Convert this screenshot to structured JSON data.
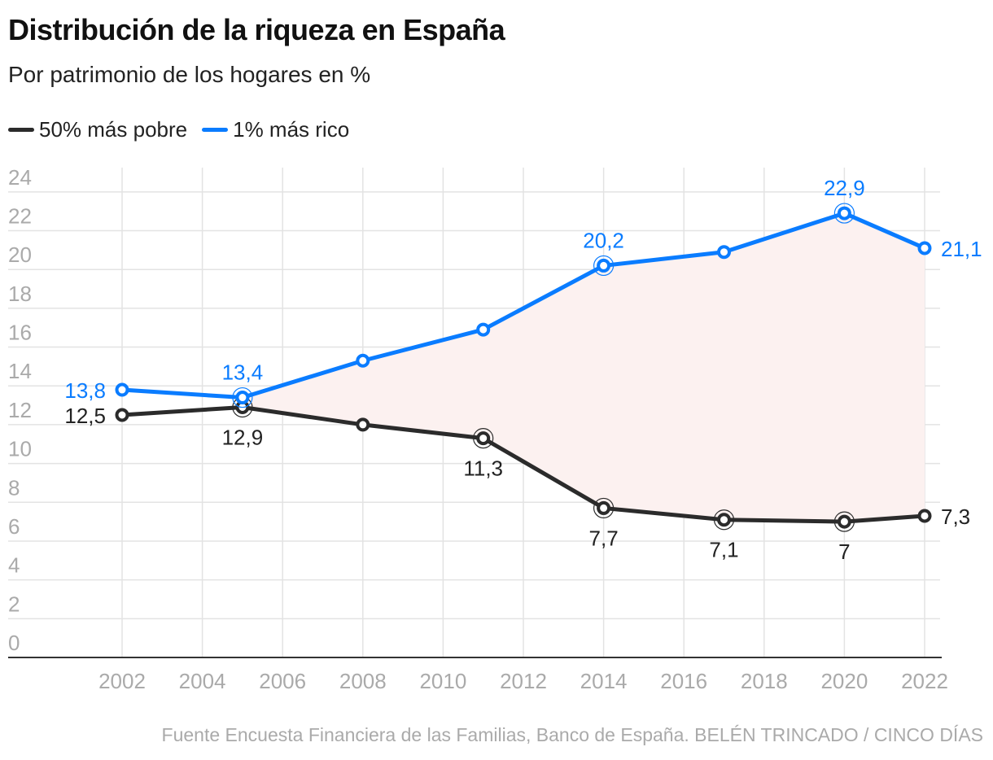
{
  "title": "Distribución de la riqueza en España",
  "subtitle": "Por patrimonio de los hogares en %",
  "source": "Fuente Encuesta Financiera de las Familias, Banco de España. BELÉN TRINCADO / CINCO DÍAS",
  "chart_data": {
    "type": "line",
    "title": "Distribución de la riqueza en España",
    "subtitle": "Por patrimonio de los hogares en %",
    "x": [
      2002,
      2005,
      2008,
      2011,
      2014,
      2017,
      2020,
      2022
    ],
    "xticks": [
      "2002",
      "2004",
      "2006",
      "2008",
      "2010",
      "2012",
      "2014",
      "2016",
      "2018",
      "2020",
      "2022"
    ],
    "yticks": [
      "0",
      "2",
      "4",
      "6",
      "8",
      "10",
      "12",
      "14",
      "16",
      "18",
      "20",
      "22",
      "24"
    ],
    "ylim": [
      0,
      24
    ],
    "grid": true,
    "legend_position": "top-left",
    "series": [
      {
        "name": "50% más pobre",
        "color": "#2b2b2b",
        "values": [
          12.5,
          12.9,
          12.0,
          11.3,
          7.7,
          7.1,
          7.0,
          7.3
        ],
        "labels": [
          "12,5",
          "12,9",
          null,
          "11,3",
          "7,7",
          "7,1",
          "7",
          "7,3"
        ]
      },
      {
        "name": "1% más rico",
        "color": "#0a7cff",
        "values": [
          13.8,
          13.4,
          15.3,
          16.9,
          20.2,
          20.9,
          22.9,
          21.1
        ],
        "labels": [
          "13,8",
          "13,4",
          null,
          null,
          "20,2",
          null,
          "22,9",
          "21,1"
        ]
      }
    ],
    "fill_between_color": "#fcf1f0"
  }
}
